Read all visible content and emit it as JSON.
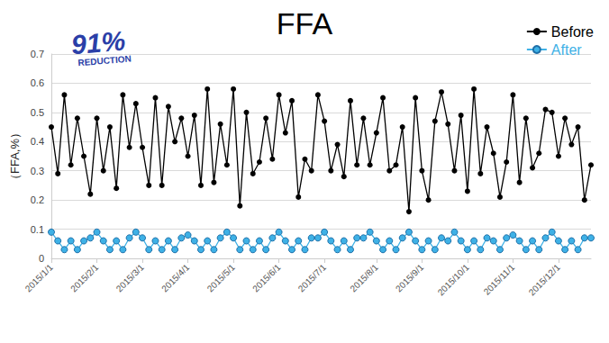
{
  "chart_data": {
    "type": "line",
    "title": "FFA",
    "y_label": "（FFA,%）",
    "annotations": [
      "91%",
      "REDUCTION"
    ],
    "categories": [
      "2015/1/1",
      null,
      null,
      null,
      null,
      null,
      null,
      "2015/2/1",
      null,
      null,
      null,
      null,
      null,
      null,
      "2015/3/1",
      null,
      null,
      null,
      null,
      null,
      null,
      "2015/4/1",
      null,
      null,
      null,
      null,
      null,
      null,
      "2015/5/1",
      null,
      null,
      null,
      null,
      null,
      null,
      "2015/6/1",
      null,
      null,
      null,
      null,
      null,
      null,
      "2015/7/1",
      null,
      null,
      null,
      null,
      null,
      null,
      null,
      "2015/8/1",
      null,
      null,
      null,
      null,
      null,
      null,
      "2015/9/1",
      null,
      null,
      null,
      null,
      null,
      null,
      "2015/10/1",
      null,
      null,
      null,
      null,
      null,
      null,
      "2015/11/1",
      null,
      null,
      null,
      null,
      null,
      null,
      "2015/12/1",
      null,
      null,
      null,
      null,
      null
    ],
    "series": [
      {
        "name": "Before",
        "color": "#000000",
        "marker": "circle",
        "values": [
          0.45,
          0.29,
          0.56,
          0.32,
          0.48,
          0.35,
          0.22,
          0.48,
          0.3,
          0.45,
          0.24,
          0.56,
          0.38,
          0.53,
          0.38,
          0.25,
          0.55,
          0.25,
          0.52,
          0.4,
          0.48,
          0.35,
          0.49,
          0.25,
          0.58,
          0.26,
          0.46,
          0.32,
          0.58,
          0.18,
          0.5,
          0.29,
          0.33,
          0.48,
          0.34,
          0.56,
          0.43,
          0.54,
          0.21,
          0.34,
          0.3,
          0.56,
          0.47,
          0.3,
          0.39,
          0.28,
          0.54,
          0.32,
          0.48,
          0.32,
          0.43,
          0.55,
          0.3,
          0.32,
          0.45,
          0.16,
          0.55,
          0.3,
          0.2,
          0.47,
          0.57,
          0.46,
          0.3,
          0.49,
          0.23,
          0.58,
          0.29,
          0.45,
          0.36,
          0.21,
          0.33,
          0.56,
          0.26,
          0.48,
          0.31,
          0.36,
          0.51,
          0.5,
          0.35,
          0.48,
          0.39,
          0.45,
          0.2,
          0.32
        ]
      },
      {
        "name": "After",
        "color": "#3eb1e6",
        "marker": "circle",
        "values": [
          0.09,
          0.06,
          0.03,
          0.06,
          0.03,
          0.06,
          0.07,
          0.09,
          0.06,
          0.03,
          0.06,
          0.03,
          0.07,
          0.09,
          0.07,
          0.03,
          0.06,
          0.03,
          0.06,
          0.03,
          0.07,
          0.08,
          0.06,
          0.03,
          0.06,
          0.03,
          0.07,
          0.09,
          0.07,
          0.03,
          0.06,
          0.03,
          0.06,
          0.03,
          0.07,
          0.09,
          0.06,
          0.03,
          0.06,
          0.03,
          0.07,
          0.07,
          0.09,
          0.06,
          0.03,
          0.06,
          0.03,
          0.07,
          0.07,
          0.09,
          0.06,
          0.03,
          0.06,
          0.03,
          0.07,
          0.09,
          0.06,
          0.03,
          0.06,
          0.03,
          0.07,
          0.06,
          0.09,
          0.06,
          0.03,
          0.06,
          0.03,
          0.07,
          0.06,
          0.03,
          0.07,
          0.08,
          0.06,
          0.03,
          0.06,
          0.03,
          0.07,
          0.09,
          0.06,
          0.03,
          0.06,
          0.03,
          0.07,
          0.07
        ]
      }
    ],
    "ylim": [
      0,
      0.7
    ],
    "yticks": [
      0,
      0.1,
      0.2,
      0.3,
      0.4,
      0.5,
      0.6,
      0.7
    ],
    "grid": true,
    "legend": "top-right"
  }
}
